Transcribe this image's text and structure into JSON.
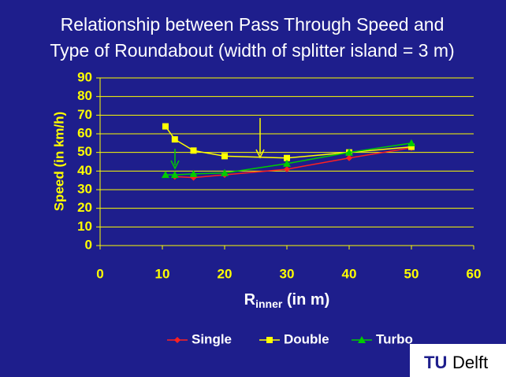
{
  "chart_data": {
    "type": "line",
    "title": [
      "Relationship between Pass Through Speed and",
      "Type of Roundabout (width of splitter island = 3 m)"
    ],
    "xlabel": {
      "main": "R",
      "subscript": "inner",
      "rest": " (in m)"
    },
    "ylabel": "Speed (in km/h)",
    "xlim": [
      0,
      60
    ],
    "xticks": [
      0,
      10,
      20,
      30,
      40,
      50,
      60
    ],
    "ylim": [
      0,
      90
    ],
    "yticks": [
      0,
      10,
      20,
      30,
      40,
      50,
      60,
      70,
      80,
      90
    ],
    "grid": true,
    "legend": "bottom",
    "series": [
      {
        "name": "Single",
        "color": "#ff2020",
        "marker": "diamond",
        "x": [
          12,
          15,
          20,
          30,
          40,
          50
        ],
        "values": [
          37,
          36.5,
          38,
          41,
          47,
          52.5
        ]
      },
      {
        "name": "Double",
        "color": "#ffff00",
        "marker": "square",
        "x": [
          10.5,
          12,
          15,
          20,
          30,
          40,
          50
        ],
        "values": [
          64,
          57,
          51,
          48,
          47,
          50,
          53
        ]
      },
      {
        "name": "Turbo",
        "color": "#00cc00",
        "marker": "triangle",
        "x": [
          10.5,
          12,
          15,
          20,
          30,
          40,
          50
        ],
        "values": [
          38,
          38,
          38.5,
          39,
          44,
          50,
          55
        ]
      }
    ]
  },
  "logo": {
    "tu": "TU",
    "delft": "Delft"
  }
}
